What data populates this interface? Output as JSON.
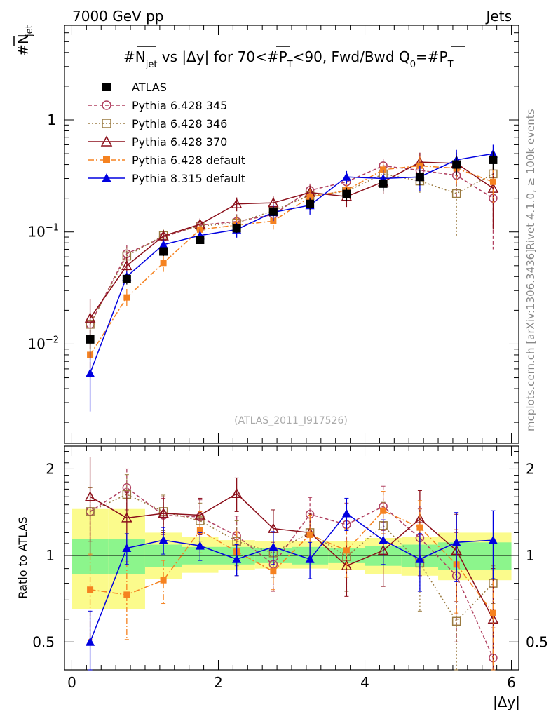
{
  "header": {
    "left": "7000 GeV pp",
    "right": "Jets"
  },
  "title": {
    "main": "#N",
    "sub": "jet",
    "rest": " vs |Δy| for 70<#P",
    "sub2": "T",
    "rest2": "<90, Fwd/Bwd Q",
    "sub3": "0",
    "rest3": "=#P",
    "sub4": "T"
  },
  "side": {
    "rivet": "Rivet 4.1.0, ≥ 100k events",
    "mcplots": "mcplots.cern.ch [arXiv:1306.3436]"
  },
  "watermark": "(ATLAS_2011_I917526)",
  "axes": {
    "ylabel_top_main": "#N",
    "ylabel_top_sub": "jet",
    "ylabel_bottom": "Ratio to ATLAS",
    "xlabel": "|Δy|",
    "x_ticks": [
      "0",
      "2",
      "4",
      "6"
    ],
    "y_top_ticks": [
      {
        "label": "1",
        "base": "1",
        "exp": ""
      },
      {
        "label": "10^-1",
        "base": "10",
        "exp": "−1"
      },
      {
        "label": "10^-2",
        "base": "10",
        "exp": "−2"
      }
    ],
    "y_bottom_ticks": [
      "2",
      "1",
      "0.5"
    ]
  },
  "legend": [
    {
      "key": "atlas",
      "label": "ATLAS"
    },
    {
      "key": "p345",
      "label": "Pythia 6.428 345"
    },
    {
      "key": "p346",
      "label": "Pythia 6.428 346"
    },
    {
      "key": "p370",
      "label": "Pythia 6.428 370"
    },
    {
      "key": "p6def",
      "label": "Pythia 6.428 default"
    },
    {
      "key": "p8def",
      "label": "Pythia 8.315 default"
    }
  ],
  "colors": {
    "atlas": "#000000",
    "p345": "#b04060",
    "p346": "#9a7a40",
    "p370": "#8b0f1a",
    "p6def": "#f58220",
    "p8def": "#0000e0",
    "band_inner": "#8cf58c",
    "band_outer": "#fbfb8c"
  },
  "chart_data": {
    "type": "line",
    "x": [
      0.25,
      0.75,
      1.25,
      1.75,
      2.25,
      2.75,
      3.25,
      3.75,
      4.25,
      4.75,
      5.25,
      5.75
    ],
    "xlim": [
      -0.1,
      6.1
    ],
    "ylim_top": [
      0.0013,
      7.0
    ],
    "ylim_ratio": [
      0.4,
      2.4
    ],
    "series": [
      {
        "key": "atlas",
        "name": "ATLAS",
        "values": [
          0.011,
          0.038,
          0.067,
          0.085,
          0.108,
          0.152,
          0.178,
          0.218,
          0.27,
          0.31,
          0.4,
          0.44
        ],
        "errors": [
          0.0025,
          0.004,
          0.006,
          0.006,
          0.01,
          0.015,
          0.02,
          0.03,
          0.04,
          0.05,
          0.08,
          0.08
        ]
      },
      {
        "key": "p345",
        "name": "Pythia 6.428 345",
        "values": [
          0.015,
          0.064,
          0.09,
          0.115,
          0.124,
          0.143,
          0.235,
          0.28,
          0.39,
          0.355,
          0.32,
          0.2
        ],
        "errors": [
          0.004,
          0.012,
          0.012,
          0.015,
          0.02,
          0.025,
          0.035,
          0.05,
          0.06,
          0.08,
          0.12,
          0.13
        ],
        "ratio": [
          1.42,
          1.72,
          1.38,
          1.36,
          1.17,
          0.93,
          1.39,
          1.28,
          1.48,
          1.15,
          0.85,
          0.44
        ],
        "ratio_err": [
          0.3,
          0.28,
          0.2,
          0.2,
          0.2,
          0.18,
          0.2,
          0.24,
          0.26,
          0.3,
          0.35,
          0.12
        ]
      },
      {
        "key": "p346",
        "name": "Pythia 6.428 346",
        "values": [
          0.015,
          0.061,
          0.093,
          0.113,
          0.12,
          0.155,
          0.212,
          0.23,
          0.33,
          0.285,
          0.22,
          0.33
        ],
        "errors": [
          0.004,
          0.012,
          0.012,
          0.015,
          0.02,
          0.025,
          0.035,
          0.05,
          0.06,
          0.07,
          0.13,
          0.1
        ],
        "ratio": [
          1.42,
          1.63,
          1.42,
          1.32,
          1.12,
          1.02,
          1.2,
          0.99,
          1.27,
          0.94,
          0.59,
          0.8
        ],
        "ratio_err": [
          0.3,
          0.28,
          0.2,
          0.2,
          0.2,
          0.18,
          0.2,
          0.24,
          0.26,
          0.3,
          0.3,
          0.12
        ]
      },
      {
        "key": "p370",
        "name": "Pythia 6.428 370",
        "values": [
          0.017,
          0.05,
          0.092,
          0.117,
          0.178,
          0.182,
          0.225,
          0.207,
          0.28,
          0.42,
          0.41,
          0.245
        ],
        "errors": [
          0.008,
          0.01,
          0.012,
          0.015,
          0.025,
          0.025,
          0.035,
          0.04,
          0.06,
          0.09,
          0.1,
          0.14
        ],
        "ratio": [
          1.6,
          1.35,
          1.4,
          1.38,
          1.64,
          1.24,
          1.2,
          0.92,
          1.04,
          1.34,
          1.04,
          0.6
        ],
        "ratio_err": [
          0.6,
          0.3,
          0.2,
          0.2,
          0.22,
          0.2,
          0.2,
          0.2,
          0.26,
          0.34,
          0.35,
          0.3
        ]
      },
      {
        "key": "p6def",
        "name": "Pythia 6.428 default",
        "values": [
          0.008,
          0.026,
          0.053,
          0.105,
          0.115,
          0.125,
          0.205,
          0.235,
          0.36,
          0.39,
          0.37,
          0.28
        ],
        "errors": [
          0.003,
          0.005,
          0.009,
          0.015,
          0.02,
          0.02,
          0.035,
          0.04,
          0.06,
          0.08,
          0.1,
          0.1
        ],
        "ratio": [
          0.76,
          0.73,
          0.82,
          1.22,
          1.03,
          0.88,
          1.18,
          1.04,
          1.43,
          1.25,
          0.93,
          0.63
        ],
        "ratio_err": [
          0.25,
          0.22,
          0.14,
          0.2,
          0.18,
          0.12,
          0.2,
          0.2,
          0.24,
          0.3,
          0.3,
          0.26
        ]
      },
      {
        "key": "p8def",
        "name": "Pythia 8.315 default",
        "values": [
          0.0055,
          0.04,
          0.077,
          0.093,
          0.105,
          0.15,
          0.173,
          0.31,
          0.3,
          0.31,
          0.44,
          0.5
        ],
        "errors": [
          0.003,
          0.005,
          0.009,
          0.012,
          0.016,
          0.025,
          0.03,
          0.04,
          0.06,
          0.08,
          0.1,
          0.1
        ],
        "ratio": [
          0.5,
          1.06,
          1.13,
          1.08,
          0.97,
          1.07,
          0.97,
          1.4,
          1.13,
          0.97,
          1.11,
          1.13
        ],
        "ratio_err": [
          0.14,
          0.13,
          0.12,
          0.12,
          0.12,
          0.14,
          0.14,
          0.18,
          0.2,
          0.22,
          0.3,
          0.3
        ]
      }
    ],
    "uncertainty_bands": {
      "inner_lo": [
        0.86,
        0.86,
        0.91,
        0.93,
        0.93,
        0.94,
        0.93,
        0.94,
        0.92,
        0.91,
        0.89,
        0.89
      ],
      "inner_hi": [
        1.14,
        1.14,
        1.09,
        1.07,
        1.07,
        1.06,
        1.07,
        1.06,
        1.08,
        1.09,
        1.11,
        1.11
      ],
      "outer_lo": [
        0.65,
        0.65,
        0.83,
        0.87,
        0.89,
        0.9,
        0.9,
        0.89,
        0.86,
        0.85,
        0.82,
        0.82
      ],
      "outer_hi": [
        1.45,
        1.45,
        1.2,
        1.16,
        1.13,
        1.12,
        1.12,
        1.12,
        1.15,
        1.16,
        1.2,
        1.2
      ]
    },
    "bin_edges": [
      0,
      0.5,
      1,
      1.5,
      2,
      2.5,
      3,
      3.5,
      4,
      4.5,
      5,
      5.5,
      6
    ]
  }
}
